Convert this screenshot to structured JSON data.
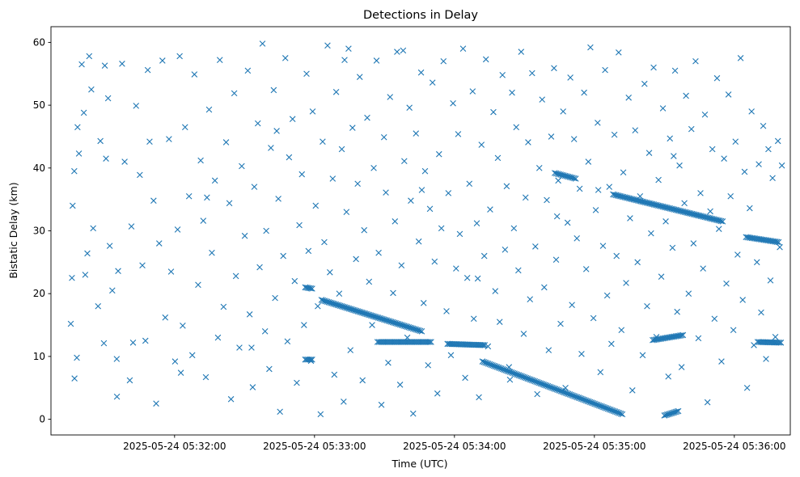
{
  "chart_data": {
    "type": "scatter",
    "title": "Detections in Delay",
    "xlabel": "Time (UTC)",
    "ylabel": "Bistatic Delay (km)",
    "x_start": "2025-05-24 05:31:15",
    "x_end": "2025-05-24 05:36:21",
    "xlim": [
      "2025-05-24 05:31:07",
      "2025-05-24 05:36:24"
    ],
    "ylim": [
      -2.5,
      62.5
    ],
    "x_ticks": [
      "2025-05-24 05:32:00",
      "2025-05-24 05:33:00",
      "2025-05-24 05:34:00",
      "2025-05-24 05:35:00",
      "2025-05-24 05:36:00"
    ],
    "y_ticks": [
      0,
      10,
      20,
      30,
      40,
      50,
      60
    ],
    "grid": false,
    "marker": "x",
    "color": "#1f77b4",
    "tracks": [
      {
        "x_start": "2025-05-24 05:33:03",
        "x_end": "2025-05-24 05:33:46",
        "y_start": 19.0,
        "y_end": 14.0
      },
      {
        "x_start": "2025-05-24 05:34:12",
        "x_end": "2025-05-24 05:35:12",
        "y_start": 9.2,
        "y_end": 0.8
      },
      {
        "x_start": "2025-05-24 05:33:27",
        "x_end": "2025-05-24 05:33:50",
        "y_start": 12.3,
        "y_end": 12.3
      },
      {
        "x_start": "2025-05-24 05:33:57",
        "x_end": "2025-05-24 05:34:13",
        "y_start": 12.0,
        "y_end": 11.8
      },
      {
        "x_start": "2025-05-24 05:35:08",
        "x_end": "2025-05-24 05:35:55",
        "y_start": 35.8,
        "y_end": 31.5
      },
      {
        "x_start": "2025-05-24 05:34:43",
        "x_end": "2025-05-24 05:34:52",
        "y_start": 39.2,
        "y_end": 38.3
      },
      {
        "x_start": "2025-05-24 05:36:05",
        "x_end": "2025-05-24 05:36:19",
        "y_start": 29.0,
        "y_end": 28.2
      },
      {
        "x_start": "2025-05-24 05:36:10",
        "x_end": "2025-05-24 05:36:20",
        "y_start": 12.3,
        "y_end": 12.2
      },
      {
        "x_start": "2025-05-24 05:35:25",
        "x_end": "2025-05-24 05:35:38",
        "y_start": 12.6,
        "y_end": 13.4
      },
      {
        "x_start": "2025-05-24 05:35:30",
        "x_end": "2025-05-24 05:35:36",
        "y_start": 0.6,
        "y_end": 1.3
      },
      {
        "x_start": "2025-05-24 05:32:56",
        "x_end": "2025-05-24 05:32:59",
        "y_start": 9.5,
        "y_end": 9.5
      },
      {
        "x_start": "2025-05-24 05:32:56",
        "x_end": "2025-05-24 05:32:59",
        "y_start": 21.0,
        "y_end": 20.8
      }
    ],
    "scatter_points": [
      [
        0.5,
        15.2
      ],
      [
        1.0,
        22.5
      ],
      [
        1.3,
        34.0
      ],
      [
        2.0,
        39.5
      ],
      [
        2.1,
        6.5
      ],
      [
        3.1,
        9.8
      ],
      [
        3.4,
        46.5
      ],
      [
        4.0,
        42.3
      ],
      [
        5.2,
        56.5
      ],
      [
        6.1,
        48.8
      ],
      [
        6.7,
        23.0
      ],
      [
        7.6,
        26.4
      ],
      [
        8.4,
        57.8
      ],
      [
        9.3,
        52.5
      ],
      [
        10.1,
        30.4
      ],
      [
        12.2,
        18.0
      ],
      [
        13.2,
        44.3
      ],
      [
        14.7,
        12.1
      ],
      [
        15.6,
        41.5
      ],
      [
        16.5,
        51.1
      ],
      [
        17.2,
        27.6
      ],
      [
        18.3,
        20.5
      ],
      [
        20.2,
        9.6
      ],
      [
        20.8,
        23.6
      ],
      [
        22.5,
        56.6
      ],
      [
        23.6,
        41.0
      ],
      [
        25.8,
        6.2
      ],
      [
        26.5,
        30.7
      ],
      [
        27.2,
        12.2
      ],
      [
        28.5,
        49.9
      ],
      [
        30.1,
        38.9
      ],
      [
        31.2,
        24.5
      ],
      [
        32.5,
        12.5
      ],
      [
        33.5,
        55.6
      ],
      [
        34.3,
        44.2
      ],
      [
        36.0,
        34.8
      ],
      [
        37.1,
        2.5
      ],
      [
        38.4,
        28.0
      ],
      [
        39.8,
        57.1
      ],
      [
        41.0,
        16.2
      ],
      [
        42.6,
        44.6
      ],
      [
        43.5,
        23.5
      ],
      [
        45.2,
        9.2
      ],
      [
        46.3,
        30.2
      ],
      [
        47.2,
        57.8
      ],
      [
        48.5,
        14.9
      ],
      [
        49.5,
        46.5
      ],
      [
        51.2,
        35.5
      ],
      [
        52.6,
        10.2
      ],
      [
        53.5,
        54.9
      ],
      [
        55.1,
        21.4
      ],
      [
        56.2,
        41.2
      ],
      [
        57.3,
        31.6
      ],
      [
        58.4,
        6.7
      ],
      [
        59.8,
        49.3
      ],
      [
        61.0,
        26.5
      ],
      [
        62.3,
        38.0
      ],
      [
        63.6,
        13.0
      ],
      [
        64.4,
        57.2
      ],
      [
        66.0,
        17.9
      ],
      [
        67.1,
        44.1
      ],
      [
        68.5,
        34.4
      ],
      [
        69.2,
        3.2
      ],
      [
        70.6,
        51.9
      ],
      [
        71.3,
        22.8
      ],
      [
        72.8,
        11.4
      ],
      [
        73.8,
        40.3
      ],
      [
        75.1,
        29.2
      ],
      [
        76.4,
        55.5
      ],
      [
        77.2,
        16.7
      ],
      [
        78.5,
        5.1
      ],
      [
        79.2,
        37.0
      ],
      [
        80.7,
        47.1
      ],
      [
        81.5,
        24.2
      ],
      [
        82.7,
        59.8
      ],
      [
        83.8,
        14.0
      ],
      [
        84.3,
        30.0
      ],
      [
        85.6,
        8.0
      ],
      [
        86.3,
        43.2
      ],
      [
        87.5,
        52.4
      ],
      [
        88.1,
        19.3
      ],
      [
        89.5,
        35.1
      ],
      [
        90.2,
        1.2
      ],
      [
        91.6,
        26.0
      ],
      [
        92.5,
        57.5
      ],
      [
        93.4,
        12.4
      ],
      [
        94.1,
        41.7
      ],
      [
        95.6,
        47.8
      ],
      [
        96.5,
        22.0
      ],
      [
        97.4,
        5.8
      ],
      [
        98.5,
        30.9
      ],
      [
        99.6,
        39.0
      ],
      [
        100.5,
        15.0
      ],
      [
        101.6,
        55.0
      ],
      [
        102.4,
        26.8
      ],
      [
        103.5,
        9.3
      ],
      [
        104.2,
        49.0
      ],
      [
        105.5,
        34.0
      ],
      [
        106.4,
        18.0
      ],
      [
        107.6,
        0.8
      ],
      [
        108.5,
        44.2
      ],
      [
        109.2,
        28.2
      ],
      [
        110.6,
        59.5
      ],
      [
        111.6,
        23.4
      ],
      [
        112.8,
        38.3
      ],
      [
        113.5,
        7.1
      ],
      [
        114.3,
        52.1
      ],
      [
        115.6,
        20.0
      ],
      [
        116.7,
        43.0
      ],
      [
        117.5,
        2.8
      ],
      [
        118.7,
        33.0
      ],
      [
        119.6,
        59.0
      ],
      [
        120.4,
        11.0
      ],
      [
        121.3,
        46.4
      ],
      [
        122.8,
        25.5
      ],
      [
        123.5,
        37.5
      ],
      [
        124.4,
        54.5
      ],
      [
        125.6,
        6.2
      ],
      [
        126.3,
        30.1
      ],
      [
        127.6,
        48.0
      ],
      [
        128.4,
        21.9
      ],
      [
        129.7,
        15.0
      ],
      [
        130.4,
        40.0
      ],
      [
        131.6,
        57.1
      ],
      [
        132.5,
        26.5
      ],
      [
        133.7,
        2.3
      ],
      [
        134.8,
        44.9
      ],
      [
        135.6,
        36.1
      ],
      [
        136.6,
        9.0
      ],
      [
        137.4,
        51.3
      ],
      [
        138.7,
        20.1
      ],
      [
        139.5,
        31.5
      ],
      [
        140.4,
        58.5
      ],
      [
        141.7,
        5.5
      ],
      [
        142.3,
        24.5
      ],
      [
        143.5,
        41.1
      ],
      [
        144.8,
        13.0
      ],
      [
        145.7,
        49.6
      ],
      [
        146.3,
        34.8
      ],
      [
        147.3,
        0.9
      ],
      [
        148.5,
        45.5
      ],
      [
        149.7,
        28.3
      ],
      [
        150.7,
        55.2
      ],
      [
        151.8,
        18.5
      ],
      [
        152.4,
        39.5
      ],
      [
        153.7,
        8.6
      ],
      [
        154.5,
        33.5
      ],
      [
        155.6,
        53.6
      ],
      [
        156.5,
        25.1
      ],
      [
        157.7,
        4.1
      ],
      [
        158.4,
        42.2
      ],
      [
        159.4,
        30.4
      ],
      [
        160.3,
        57.0
      ],
      [
        161.6,
        17.2
      ],
      [
        162.4,
        36.0
      ],
      [
        163.5,
        10.2
      ],
      [
        164.4,
        50.3
      ],
      [
        165.7,
        24.0
      ],
      [
        166.6,
        45.4
      ],
      [
        167.3,
        29.5
      ],
      [
        168.7,
        59.0
      ],
      [
        169.6,
        6.6
      ],
      [
        170.5,
        22.5
      ],
      [
        171.4,
        37.5
      ],
      [
        172.8,
        52.2
      ],
      [
        173.3,
        16.0
      ],
      [
        174.6,
        31.2
      ],
      [
        175.5,
        3.5
      ],
      [
        176.6,
        43.7
      ],
      [
        177.8,
        26.0
      ],
      [
        178.5,
        57.3
      ],
      [
        179.4,
        11.6
      ],
      [
        180.3,
        33.4
      ],
      [
        181.7,
        48.9
      ],
      [
        182.5,
        20.4
      ],
      [
        183.6,
        41.6
      ],
      [
        184.4,
        15.5
      ],
      [
        185.6,
        54.8
      ],
      [
        186.7,
        27.0
      ],
      [
        187.4,
        37.1
      ],
      [
        188.4,
        8.3
      ],
      [
        189.7,
        52.0
      ],
      [
        190.5,
        30.4
      ],
      [
        191.5,
        46.5
      ],
      [
        192.4,
        23.7
      ],
      [
        193.6,
        58.5
      ],
      [
        194.7,
        13.6
      ],
      [
        195.5,
        35.3
      ],
      [
        196.6,
        44.1
      ],
      [
        197.4,
        19.1
      ],
      [
        198.3,
        55.1
      ],
      [
        199.7,
        27.5
      ],
      [
        200.5,
        4.0
      ],
      [
        201.4,
        40.0
      ],
      [
        202.6,
        50.9
      ],
      [
        203.5,
        21.0
      ],
      [
        204.6,
        34.9
      ],
      [
        205.4,
        11.0
      ],
      [
        206.5,
        45.0
      ],
      [
        207.7,
        55.9
      ],
      [
        208.6,
        25.4
      ],
      [
        209.5,
        38.0
      ],
      [
        210.5,
        15.2
      ],
      [
        211.6,
        49.0
      ],
      [
        212.6,
        5.0
      ],
      [
        213.5,
        31.3
      ],
      [
        214.7,
        54.4
      ],
      [
        215.4,
        18.2
      ],
      [
        216.3,
        44.6
      ],
      [
        217.5,
        28.8
      ],
      [
        218.7,
        36.7
      ],
      [
        219.5,
        10.4
      ],
      [
        220.6,
        52.0
      ],
      [
        221.5,
        23.9
      ],
      [
        222.4,
        41.0
      ],
      [
        223.3,
        59.2
      ],
      [
        224.6,
        16.1
      ],
      [
        225.6,
        33.3
      ],
      [
        226.4,
        47.2
      ],
      [
        227.6,
        7.5
      ],
      [
        228.7,
        27.6
      ],
      [
        229.6,
        55.6
      ],
      [
        230.5,
        19.7
      ],
      [
        231.4,
        37.0
      ],
      [
        232.3,
        12.0
      ],
      [
        233.6,
        45.3
      ],
      [
        234.5,
        26.0
      ],
      [
        235.4,
        58.4
      ],
      [
        236.6,
        14.2
      ],
      [
        237.4,
        39.3
      ],
      [
        238.6,
        21.7
      ],
      [
        239.7,
        51.2
      ],
      [
        240.3,
        32.0
      ],
      [
        241.3,
        4.6
      ],
      [
        242.5,
        46.0
      ],
      [
        243.5,
        25.0
      ],
      [
        244.6,
        35.5
      ],
      [
        245.7,
        10.2
      ],
      [
        246.5,
        53.4
      ],
      [
        247.6,
        18.0
      ],
      [
        248.5,
        42.4
      ],
      [
        249.3,
        29.6
      ],
      [
        250.4,
        56.0
      ],
      [
        251.6,
        13.1
      ],
      [
        252.5,
        38.1
      ],
      [
        253.7,
        22.7
      ],
      [
        254.4,
        49.5
      ],
      [
        255.6,
        31.5
      ],
      [
        256.7,
        6.8
      ],
      [
        257.4,
        44.7
      ],
      [
        258.5,
        27.3
      ],
      [
        259.6,
        55.5
      ],
      [
        260.5,
        17.1
      ],
      [
        261.5,
        40.4
      ],
      [
        262.4,
        8.3
      ],
      [
        263.6,
        34.4
      ],
      [
        264.3,
        51.5
      ],
      [
        265.4,
        20.0
      ],
      [
        266.6,
        46.2
      ],
      [
        267.5,
        28.0
      ],
      [
        268.4,
        57.0
      ],
      [
        269.6,
        12.9
      ],
      [
        270.5,
        36.0
      ],
      [
        271.6,
        24.0
      ],
      [
        272.4,
        48.5
      ],
      [
        273.5,
        2.7
      ],
      [
        274.7,
        33.1
      ],
      [
        275.6,
        43.0
      ],
      [
        276.5,
        16.0
      ],
      [
        277.6,
        54.3
      ],
      [
        278.4,
        30.3
      ],
      [
        279.5,
        9.2
      ],
      [
        280.6,
        41.5
      ],
      [
        281.6,
        21.6
      ],
      [
        282.5,
        51.7
      ],
      [
        283.4,
        35.5
      ],
      [
        284.6,
        14.2
      ],
      [
        285.5,
        44.2
      ],
      [
        286.4,
        26.2
      ],
      [
        287.7,
        57.5
      ],
      [
        288.6,
        19.0
      ],
      [
        289.4,
        39.4
      ],
      [
        290.5,
        5.0
      ],
      [
        291.6,
        33.6
      ],
      [
        292.4,
        49.0
      ],
      [
        293.4,
        11.8
      ],
      [
        294.7,
        25.0
      ],
      [
        295.5,
        40.6
      ],
      [
        296.5,
        17.0
      ],
      [
        297.4,
        46.7
      ],
      [
        298.6,
        9.6
      ],
      [
        299.6,
        43.0
      ],
      [
        300.5,
        22.1
      ],
      [
        301.4,
        38.4
      ],
      [
        302.6,
        13.1
      ],
      [
        303.7,
        44.3
      ],
      [
        304.5,
        27.4
      ],
      [
        305.4,
        40.4
      ],
      [
        20.3,
        3.6
      ],
      [
        58.9,
        35.3
      ],
      [
        88.8,
        45.9
      ],
      [
        117.9,
        57.2
      ],
      [
        151.0,
        36.5
      ],
      [
        188.8,
        6.3
      ],
      [
        226.7,
        36.5
      ],
      [
        259.0,
        41.9
      ],
      [
        15.1,
        56.3
      ],
      [
        47.7,
        7.4
      ],
      [
        78.0,
        11.4
      ],
      [
        143.0,
        58.7
      ],
      [
        175.0,
        22.4
      ],
      [
        209.0,
        32.3
      ]
    ]
  }
}
